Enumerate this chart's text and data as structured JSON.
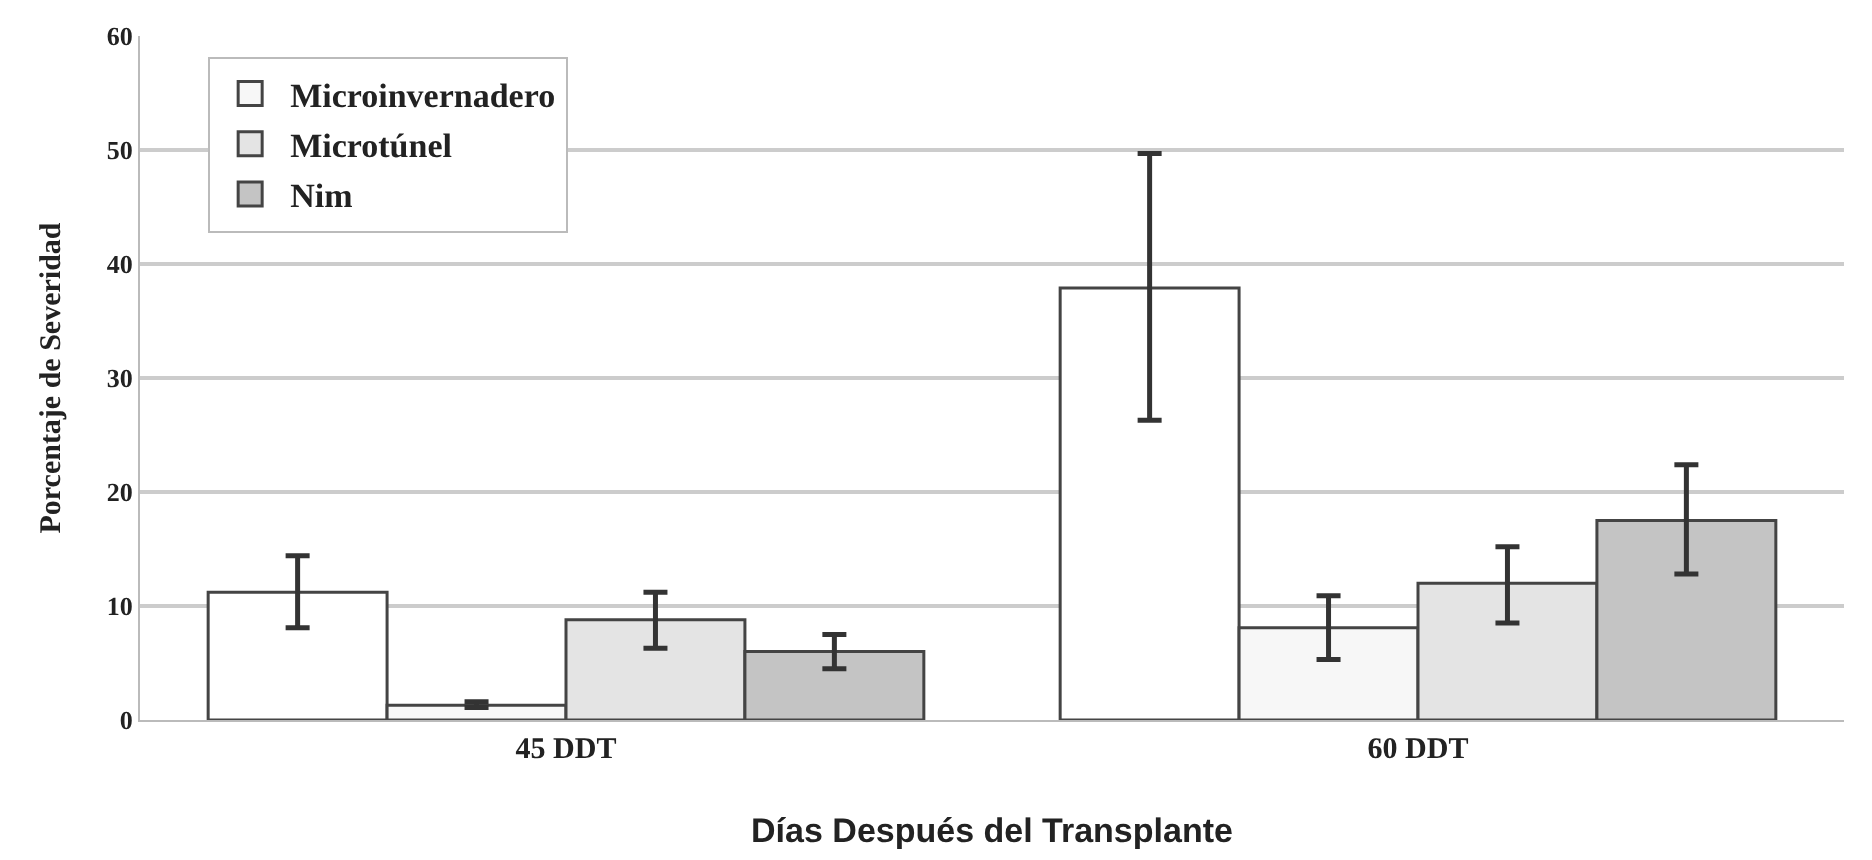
{
  "chart_data": {
    "type": "bar",
    "xlabel": "Días Después del Transplante",
    "ylabel": "Porcentaje de Severidad",
    "categories": [
      "45 DDT",
      "60 DDT"
    ],
    "series": [
      {
        "color": "#ffffff",
        "values": [
          11.2,
          37.9
        ],
        "errors": [
          [
            8.1,
            14.4
          ],
          [
            26.3,
            49.7
          ]
        ]
      },
      {
        "name": "Microinvernadero",
        "color": "#f7f7f7",
        "values": [
          1.3,
          8.1
        ],
        "errors": [
          [
            1.1,
            1.6
          ],
          [
            5.3,
            10.9
          ]
        ]
      },
      {
        "name": "Microtúnel",
        "color": "#e4e4e4",
        "values": [
          8.8,
          12.0
        ],
        "errors": [
          [
            6.3,
            11.2
          ],
          [
            8.5,
            15.2
          ]
        ]
      },
      {
        "name": "Nim",
        "color": "#c4c4c4",
        "values": [
          6.0,
          17.5
        ],
        "errors": [
          [
            4.5,
            7.5
          ],
          [
            12.8,
            22.4
          ]
        ]
      }
    ],
    "ylim": [
      0,
      60
    ],
    "yticks": [
      0,
      10,
      20,
      30,
      40,
      50,
      60
    ],
    "grid": "y",
    "legend": "top left"
  }
}
